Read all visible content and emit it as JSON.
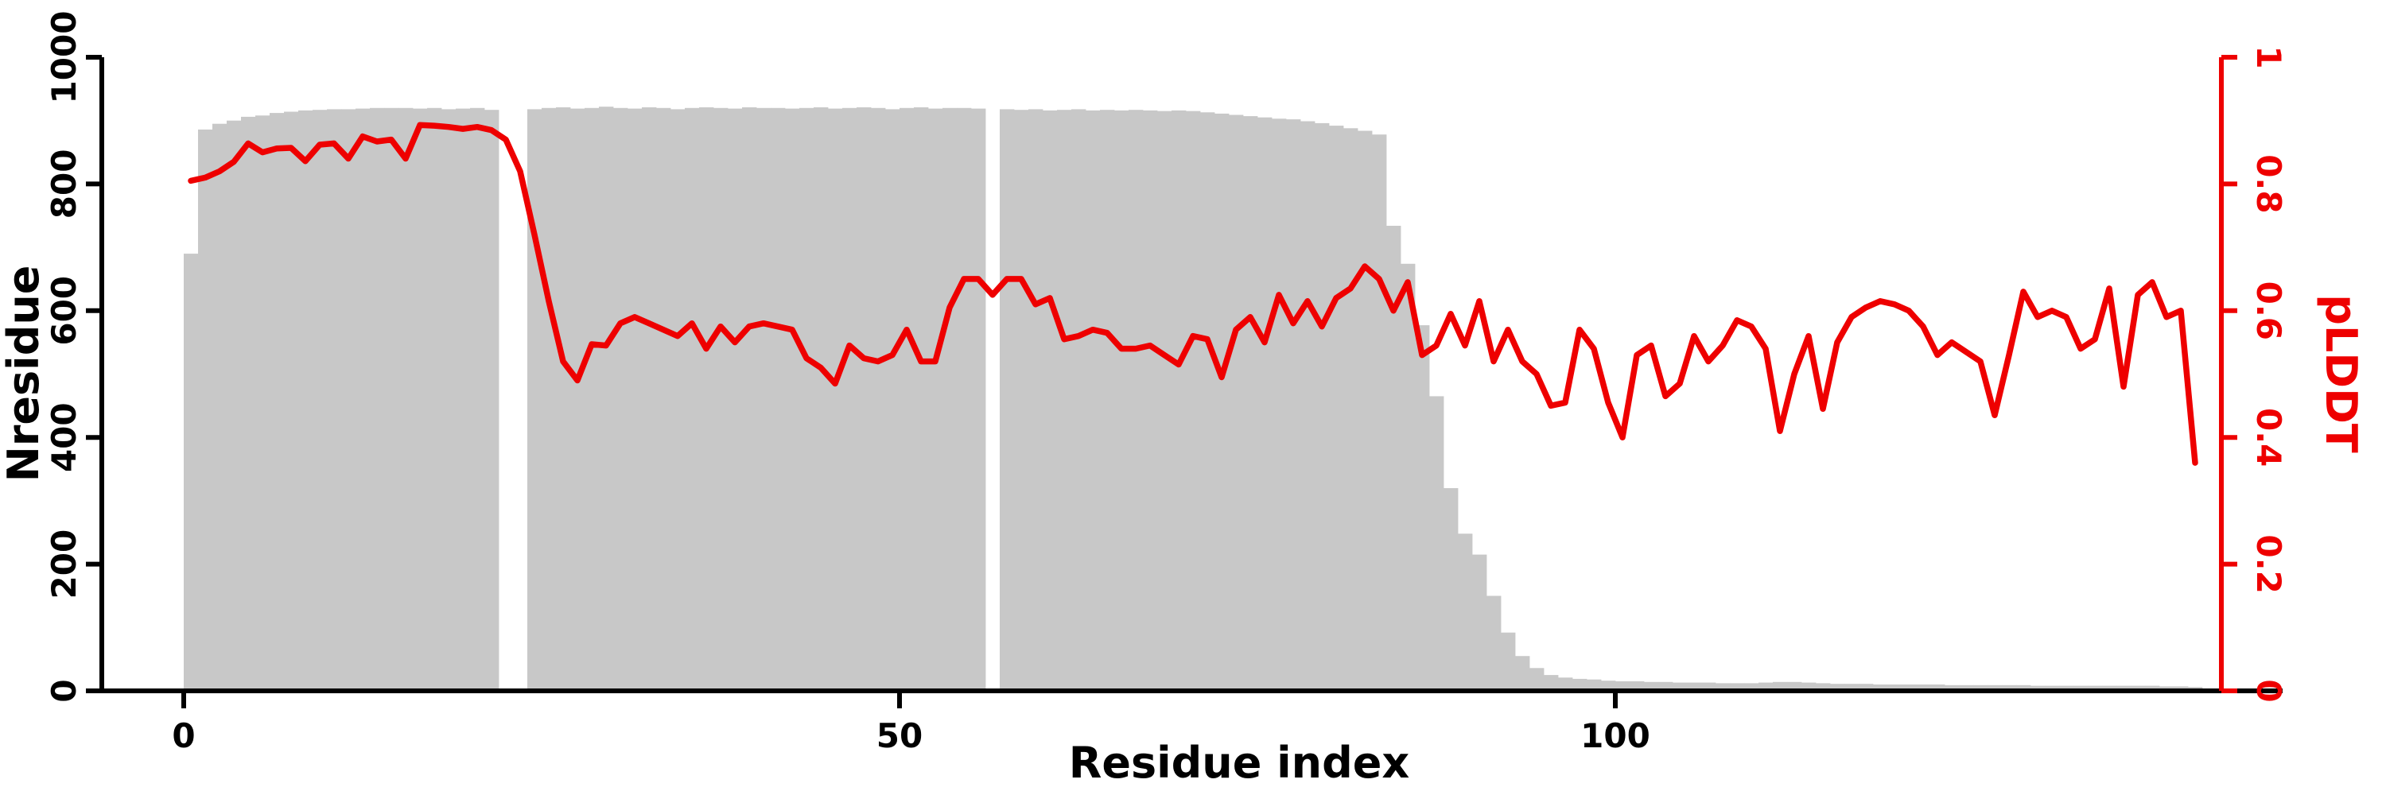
{
  "figure": {
    "xlabel": "Residue index",
    "ylabel_left": "Nresidue",
    "ylabel_right": "pLDDT"
  },
  "chart_data": {
    "type": "bar",
    "subtype": "dual-axis bar+line, per-residue profile",
    "title": "",
    "xlabel": "Residue index",
    "ylabel": "Nresidue",
    "ylabel_right": "pLDDT",
    "x_start": 0,
    "n_points": 141,
    "x_ticks": [
      0,
      50,
      100
    ],
    "left_axis": {
      "ticks": [
        "0",
        "200",
        "400",
        "600",
        "800",
        "1000"
      ],
      "tick_values": [
        0,
        200,
        400,
        600,
        800,
        1000
      ],
      "ylim": [
        0,
        1000
      ],
      "color": "#000000"
    },
    "right_axis": {
      "ticks": [
        "0",
        "0.2",
        "0.4",
        "0.6",
        "0.8",
        "1"
      ],
      "tick_values": [
        0,
        0.2,
        0.4,
        0.6,
        0.8,
        1
      ],
      "ylim": [
        0,
        1
      ],
      "color": "#ee0000"
    },
    "grid": false,
    "legend": "none",
    "missing_bar_indices": [
      22,
      23,
      56
    ],
    "series": [
      {
        "name": "Nresidue",
        "type": "bar",
        "axis": "left",
        "color": "#c8c8c8",
        "values": [
          690,
          886,
          895,
          900,
          906,
          908,
          912,
          914,
          916,
          917,
          918,
          918,
          919,
          920,
          920,
          920,
          919,
          920,
          918,
          919,
          920,
          917,
          0,
          0,
          918,
          920,
          921,
          919,
          920,
          922,
          920,
          919,
          921,
          920,
          918,
          920,
          921,
          920,
          919,
          921,
          920,
          920,
          919,
          920,
          921,
          919,
          920,
          921,
          920,
          918,
          920,
          921,
          919,
          920,
          920,
          919,
          0,
          918,
          917,
          918,
          916,
          917,
          918,
          916,
          917,
          916,
          917,
          916,
          915,
          916,
          915,
          913,
          911,
          909,
          907,
          905,
          903,
          902,
          899,
          896,
          892,
          888,
          884,
          878,
          734,
          674,
          577,
          465,
          320,
          248,
          215,
          150,
          92,
          55,
          36,
          25,
          21,
          19,
          18,
          16,
          15,
          15,
          14,
          14,
          13,
          13,
          13,
          12,
          12,
          12,
          13,
          14,
          14,
          13,
          12,
          11,
          11,
          11,
          10,
          10,
          10,
          10,
          10,
          9,
          9,
          9,
          9,
          9,
          9,
          8,
          8,
          8,
          8,
          8,
          8,
          8,
          8,
          8,
          7,
          7,
          6
        ]
      },
      {
        "name": "pLDDT",
        "type": "line",
        "axis": "right",
        "color": "#ee0000",
        "values": [
          0.805,
          0.81,
          0.82,
          0.835,
          0.864,
          0.85,
          0.856,
          0.857,
          0.836,
          0.862,
          0.864,
          0.84,
          0.875,
          0.867,
          0.87,
          0.84,
          0.893,
          0.892,
          0.89,
          0.887,
          0.89,
          0.885,
          0.87,
          0.82,
          0.72,
          0.615,
          0.52,
          0.49,
          0.547,
          0.545,
          0.58,
          0.59,
          0.58,
          0.57,
          0.56,
          0.58,
          0.54,
          0.575,
          0.55,
          0.575,
          0.58,
          0.575,
          0.57,
          0.525,
          0.51,
          0.485,
          0.545,
          0.525,
          0.52,
          0.53,
          0.57,
          0.52,
          0.52,
          0.605,
          0.65,
          0.65,
          0.625,
          0.65,
          0.65,
          0.61,
          0.62,
          0.555,
          0.56,
          0.57,
          0.565,
          0.54,
          0.54,
          0.545,
          0.53,
          0.515,
          0.56,
          0.555,
          0.495,
          0.57,
          0.59,
          0.55,
          0.625,
          0.58,
          0.615,
          0.575,
          0.62,
          0.635,
          0.67,
          0.65,
          0.6,
          0.645,
          0.53,
          0.545,
          0.595,
          0.545,
          0.615,
          0.52,
          0.57,
          0.52,
          0.5,
          0.45,
          0.455,
          0.57,
          0.54,
          0.455,
          0.4,
          0.53,
          0.545,
          0.465,
          0.485,
          0.56,
          0.52,
          0.545,
          0.585,
          0.575,
          0.54,
          0.41,
          0.5,
          0.56,
          0.445,
          0.55,
          0.59,
          0.605,
          0.615,
          0.61,
          0.6,
          0.575,
          0.53,
          0.55,
          0.535,
          0.52,
          0.435,
          0.53,
          0.63,
          0.59,
          0.6,
          0.59,
          0.54,
          0.555,
          0.635,
          0.48,
          0.625,
          0.645,
          0.59,
          0.6,
          0.36
        ]
      }
    ]
  }
}
